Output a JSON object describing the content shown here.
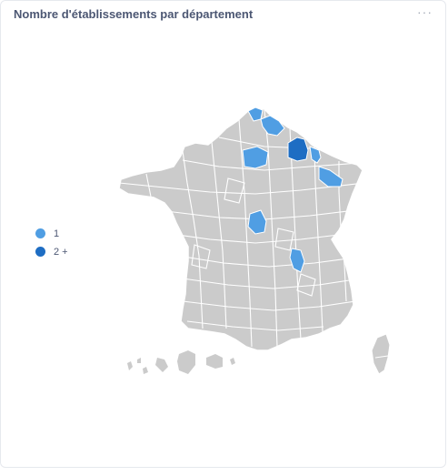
{
  "card": {
    "title": "Nombre d'établissements par département",
    "menu_label": "···"
  },
  "legend": {
    "items": [
      {
        "label": "1",
        "color": "#509ee3"
      },
      {
        "label": "2 +",
        "color": "#1e6dc3"
      }
    ]
  },
  "colors": {
    "region_fill": "#cbcbcb",
    "region_border": "#ffffff",
    "level_1": "#509ee3",
    "level_2": "#1e6dc3"
  },
  "map": {
    "type": "choropleth",
    "region": "France départements",
    "highlighted": [
      {
        "area": "north-coast",
        "level": "1"
      },
      {
        "area": "north-border",
        "level": "1"
      },
      {
        "area": "paris-region",
        "level": "1"
      },
      {
        "area": "ardennes",
        "level": "2 +"
      },
      {
        "area": "lorraine",
        "level": "1"
      },
      {
        "area": "centre",
        "level": "1"
      },
      {
        "area": "rhone",
        "level": "1"
      }
    ]
  }
}
